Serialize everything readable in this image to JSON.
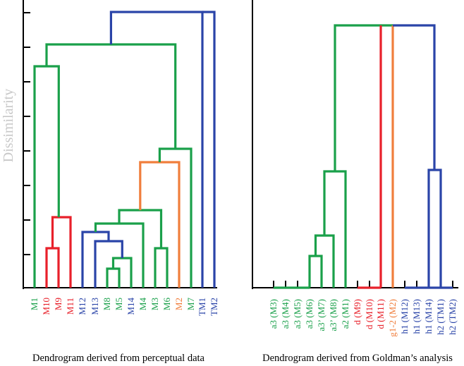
{
  "y_axis_label": "Dissimilarity",
  "colors": {
    "green": "#1aa04a",
    "red": "#e8202a",
    "blue": "#2a44a8",
    "orange": "#f07e3c",
    "axis": "#000000",
    "ylabel": "#c8c8c8"
  },
  "left_panel": {
    "caption": "Dendrogram derived from perceptual data",
    "leaves": [
      {
        "label": "M1",
        "color": "green"
      },
      {
        "label": "M10",
        "color": "red"
      },
      {
        "label": "M9",
        "color": "red"
      },
      {
        "label": "M11",
        "color": "red"
      },
      {
        "label": "M12",
        "color": "blue"
      },
      {
        "label": "M13",
        "color": "blue"
      },
      {
        "label": "M8",
        "color": "green"
      },
      {
        "label": "M5",
        "color": "green"
      },
      {
        "label": "M14",
        "color": "blue"
      },
      {
        "label": "M4",
        "color": "green"
      },
      {
        "label": "M3",
        "color": "green"
      },
      {
        "label": "M6",
        "color": "green"
      },
      {
        "label": "M2",
        "color": "orange"
      },
      {
        "label": "M7",
        "color": "green"
      },
      {
        "label": "TM1",
        "color": "blue"
      },
      {
        "label": "TM2",
        "color": "blue"
      }
    ]
  },
  "right_panel": {
    "caption": "Dendrogram derived from Goldman’s analysis",
    "leaves": [
      {
        "label": "a3 (M3)",
        "color": "green"
      },
      {
        "label": "a3 (M4)",
        "color": "green"
      },
      {
        "label": "a3 (M5)",
        "color": "green"
      },
      {
        "label": "a3 (M6)",
        "color": "green"
      },
      {
        "label": "a3’ (M7)",
        "color": "green"
      },
      {
        "label": "a3’ (M8)",
        "color": "green"
      },
      {
        "label": "a2 (M1)",
        "color": "green"
      },
      {
        "label": "d (M9)",
        "color": "red"
      },
      {
        "label": "d (M10)",
        "color": "red"
      },
      {
        "label": "d (M11)",
        "color": "red"
      },
      {
        "label": "g1-2 (M2)",
        "color": "orange"
      },
      {
        "label": "h1 (M12)",
        "color": "blue"
      },
      {
        "label": "h1 (M13)",
        "color": "blue"
      },
      {
        "label": "h1 (M14)",
        "color": "blue"
      },
      {
        "label": "h2 (TM1)",
        "color": "blue"
      },
      {
        "label": "h2 (TM2)",
        "color": "blue"
      }
    ]
  }
}
